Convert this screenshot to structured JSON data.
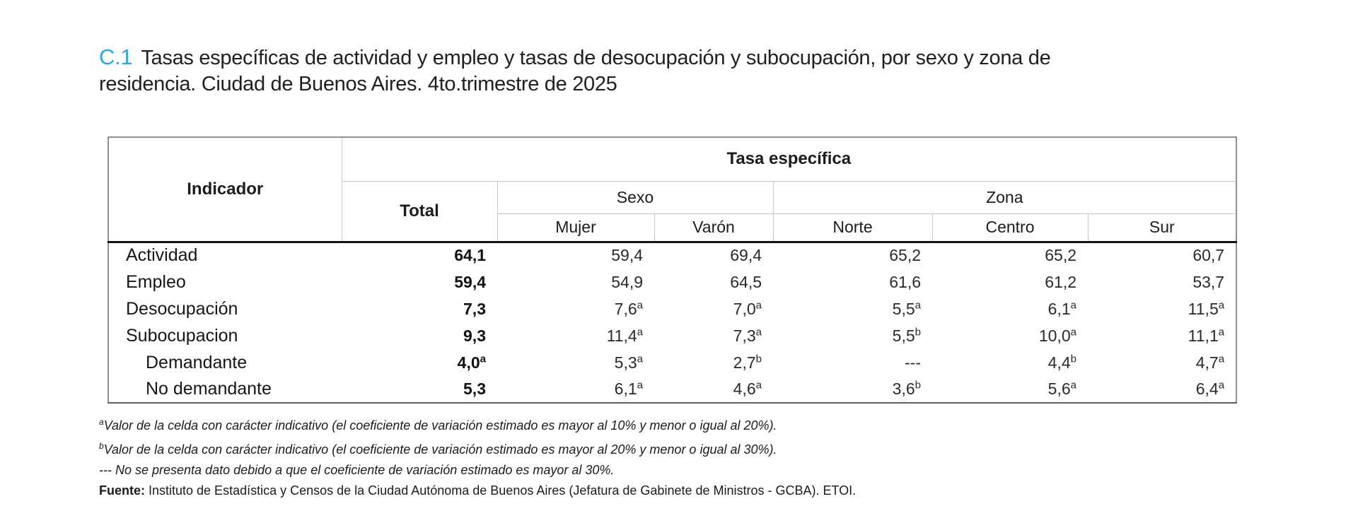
{
  "title": {
    "code": "C.1",
    "text": "Tasas específicas de actividad y empleo y tasas de desocupación y subocupación, por sexo y zona de residencia. Ciudad de Buenos Aires. 4to.trimestre de 2025",
    "accent_color": "#29a9e2"
  },
  "table": {
    "corner_label": "Indicador",
    "group_header": "Tasa específica",
    "total_header": "Total",
    "sexo_header": "Sexo",
    "zona_header": "Zona",
    "sub_headers": [
      "Mujer",
      "Varón",
      "Norte",
      "Centro",
      "Sur"
    ],
    "rows": [
      {
        "label": "Actividad",
        "indent": false,
        "cells": [
          {
            "text": "64,1",
            "sup": "",
            "bold": true
          },
          {
            "text": "59,4",
            "sup": ""
          },
          {
            "text": "69,4",
            "sup": ""
          },
          {
            "text": "65,2",
            "sup": ""
          },
          {
            "text": "65,2",
            "sup": ""
          },
          {
            "text": "60,7",
            "sup": ""
          }
        ]
      },
      {
        "label": "Empleo",
        "indent": false,
        "cells": [
          {
            "text": "59,4",
            "sup": "",
            "bold": true
          },
          {
            "text": "54,9",
            "sup": ""
          },
          {
            "text": "64,5",
            "sup": ""
          },
          {
            "text": "61,6",
            "sup": ""
          },
          {
            "text": "61,2",
            "sup": ""
          },
          {
            "text": "53,7",
            "sup": ""
          }
        ]
      },
      {
        "label": "Desocupación",
        "indent": false,
        "cells": [
          {
            "text": "7,3",
            "sup": "",
            "bold": true
          },
          {
            "text": "7,6",
            "sup": "a"
          },
          {
            "text": "7,0",
            "sup": "a"
          },
          {
            "text": "5,5",
            "sup": "a"
          },
          {
            "text": "6,1",
            "sup": "a"
          },
          {
            "text": "11,5",
            "sup": "a"
          }
        ]
      },
      {
        "label": "Subocupacion",
        "indent": false,
        "cells": [
          {
            "text": "9,3",
            "sup": "",
            "bold": true
          },
          {
            "text": "11,4",
            "sup": "a"
          },
          {
            "text": "7,3",
            "sup": "a"
          },
          {
            "text": "5,5",
            "sup": "b"
          },
          {
            "text": "10,0",
            "sup": "a"
          },
          {
            "text": "11,1",
            "sup": "a"
          }
        ]
      },
      {
        "label": "Demandante",
        "indent": true,
        "cells": [
          {
            "text": "4,0",
            "sup": "a",
            "bold": true
          },
          {
            "text": "5,3",
            "sup": "a"
          },
          {
            "text": "2,7",
            "sup": "b"
          },
          {
            "text": "---",
            "sup": ""
          },
          {
            "text": "4,4",
            "sup": "b"
          },
          {
            "text": "4,7",
            "sup": "a"
          }
        ]
      },
      {
        "label": "No demandante",
        "indent": true,
        "cells": [
          {
            "text": "5,3",
            "sup": "",
            "bold": true
          },
          {
            "text": "6,1",
            "sup": "a"
          },
          {
            "text": "4,6",
            "sup": "a"
          },
          {
            "text": "3,6",
            "sup": "b"
          },
          {
            "text": "5,6",
            "sup": "a"
          },
          {
            "text": "6,4",
            "sup": "a"
          }
        ]
      }
    ]
  },
  "footnotes": [
    {
      "marker": "a",
      "marker_is_sup": true,
      "text": "Valor de la celda con carácter indicativo (el coeficiente de variación estimado es mayor al 10% y menor o igual al 20%)."
    },
    {
      "marker": "b",
      "marker_is_sup": true,
      "text": "Valor de la celda con carácter indicativo (el coeficiente de variación estimado es mayor al 20% y menor o igual al 30%)."
    },
    {
      "marker": "---",
      "marker_is_sup": false,
      "text": "No se presenta dato debido a que el coeficiente de variación estimado es mayor al 30%."
    }
  ],
  "source": {
    "label": "Fuente:",
    "text": "Instituto de Estadística y Censos de la Ciudad Autónoma de Buenos Aires (Jefatura de Gabinete de Ministros - GCBA). ETOI."
  }
}
